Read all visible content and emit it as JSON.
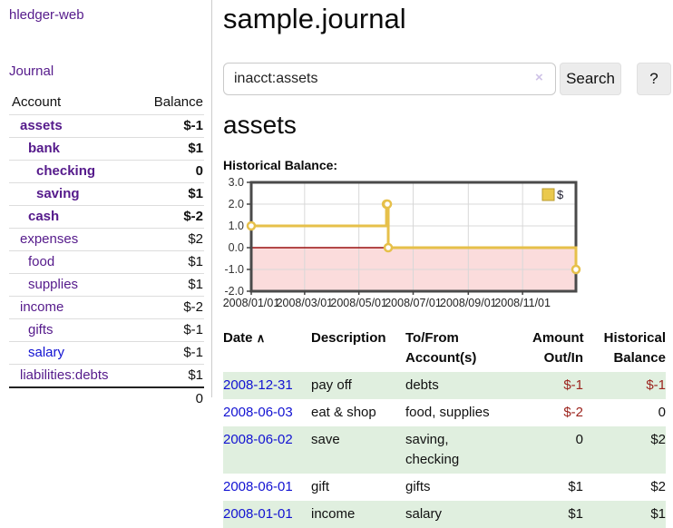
{
  "sidebar": {
    "brand": "hledger-web",
    "journal_link": "Journal",
    "accounts_header": {
      "account": "Account",
      "balance": "Balance"
    },
    "accounts": [
      {
        "name": "assets",
        "indent": 0,
        "bold": true,
        "balance": "$-1"
      },
      {
        "name": "bank",
        "indent": 1,
        "bold": true,
        "balance": "$1"
      },
      {
        "name": "checking",
        "indent": 2,
        "bold": true,
        "balance": "0"
      },
      {
        "name": "saving",
        "indent": 2,
        "bold": true,
        "balance": "$1"
      },
      {
        "name": "cash",
        "indent": 1,
        "bold": true,
        "balance": "$-2"
      },
      {
        "name": "expenses",
        "indent": 0,
        "bold": false,
        "balance": "$2"
      },
      {
        "name": "food",
        "indent": 1,
        "bold": false,
        "balance": "$1"
      },
      {
        "name": "supplies",
        "indent": 1,
        "bold": false,
        "balance": "$1"
      },
      {
        "name": "income",
        "indent": 0,
        "bold": false,
        "balance": "$-2"
      },
      {
        "name": "gifts",
        "indent": 1,
        "bold": false,
        "balance": "$-1"
      },
      {
        "name": "salary",
        "indent": 1,
        "bold": false,
        "balance": "$-1",
        "unvisited": true
      },
      {
        "name": "liabilities:debts",
        "indent": 0,
        "bold": false,
        "balance": "$1"
      }
    ],
    "total": "0"
  },
  "main": {
    "title": "sample.journal",
    "account_heading": "assets"
  },
  "search": {
    "value": "inacct:assets",
    "clear_icon": "×",
    "search_button": "Search",
    "help_button": "?"
  },
  "register": {
    "columns": {
      "date": "Date",
      "sort_icon": "∧",
      "description": "Description",
      "accounts": "To/From Account(s)",
      "amount": "Amount Out/In",
      "balance": "Historical Balance"
    },
    "rows": [
      {
        "date": "2008-12-31",
        "description": "pay off",
        "accounts": "debts",
        "amount": "$-1",
        "balance": "$-1"
      },
      {
        "date": "2008-06-03",
        "description": "eat & shop",
        "accounts": "food, supplies",
        "amount": "$-2",
        "balance": "0"
      },
      {
        "date": "2008-06-02",
        "description": "save",
        "accounts": "saving,\nchecking",
        "amount": "0",
        "balance": "$2"
      },
      {
        "date": "2008-06-01",
        "description": "gift",
        "accounts": "gifts",
        "amount": "$1",
        "balance": "$2"
      },
      {
        "date": "2008-01-01",
        "description": "income",
        "accounts": "salary",
        "amount": "$1",
        "balance": "$1"
      }
    ]
  },
  "chart_data": {
    "type": "line",
    "title": "Historical Balance:",
    "step": true,
    "series": [
      {
        "name": "$",
        "x": [
          "2008-01-01",
          "2008-06-01",
          "2008-06-02",
          "2008-06-03",
          "2008-12-31"
        ],
        "y": [
          1,
          2,
          2,
          0,
          -1
        ]
      }
    ],
    "xlim": [
      "2008-01-01",
      "2008-12-31"
    ],
    "ylim": [
      -2,
      3
    ],
    "x_ticks": [
      {
        "date": "2008-01-01",
        "label": "2008/01/01"
      },
      {
        "date": "2008-03-01",
        "label": "2008/03/01"
      },
      {
        "date": "2008-05-01",
        "label": "2008/05/01"
      },
      {
        "date": "2008-07-01",
        "label": "2008/07/01"
      },
      {
        "date": "2008-09-01",
        "label": "2008/09/01"
      },
      {
        "date": "2008-11-01",
        "label": "2008/11/01"
      }
    ],
    "y_ticks": [
      {
        "value": 3,
        "label": "3.0"
      },
      {
        "value": 2,
        "label": "2.0"
      },
      {
        "value": 1,
        "label": "1.0"
      },
      {
        "value": 0,
        "label": "0.0"
      },
      {
        "value": -1,
        "label": "-1.0"
      },
      {
        "value": -2,
        "label": "-2.0"
      }
    ],
    "legend": [
      {
        "label": "$"
      }
    ],
    "legend_position": "top-right",
    "grid": true,
    "colors": {
      "line": "#e6c04a",
      "marker_fill": "#ffffff",
      "negative_area": "#fbdcdc",
      "zero_line": "#9a1111",
      "grid": "#d8d8d8",
      "frame": "#4a4a4a",
      "legend_fill": "#eac94d"
    }
  }
}
